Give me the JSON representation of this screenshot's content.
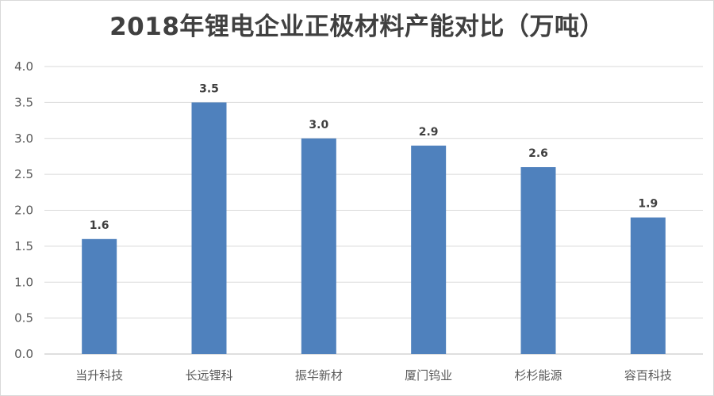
{
  "chart_data": {
    "type": "bar",
    "title": "2018年锂电企业正极材料产能对比（万吨）",
    "xlabel": "",
    "ylabel": "",
    "categories": [
      "当升科技",
      "长远锂科",
      "振华新材",
      "厦门钨业",
      "杉杉能源",
      "容百科技"
    ],
    "values": [
      1.6,
      3.5,
      3.0,
      2.9,
      2.6,
      1.9
    ],
    "data_labels": [
      "1.6",
      "3.5",
      "3.0",
      "2.9",
      "2.6",
      "1.9"
    ],
    "ylim": [
      0,
      4
    ],
    "yticks": [
      "0.0",
      "0.5",
      "1.0",
      "1.5",
      "2.0",
      "2.5",
      "3.0",
      "3.5",
      "4.0"
    ],
    "grid": true,
    "legend": "none",
    "bar_color": "#4f81bd",
    "grid_color": "#d9d9d9"
  }
}
